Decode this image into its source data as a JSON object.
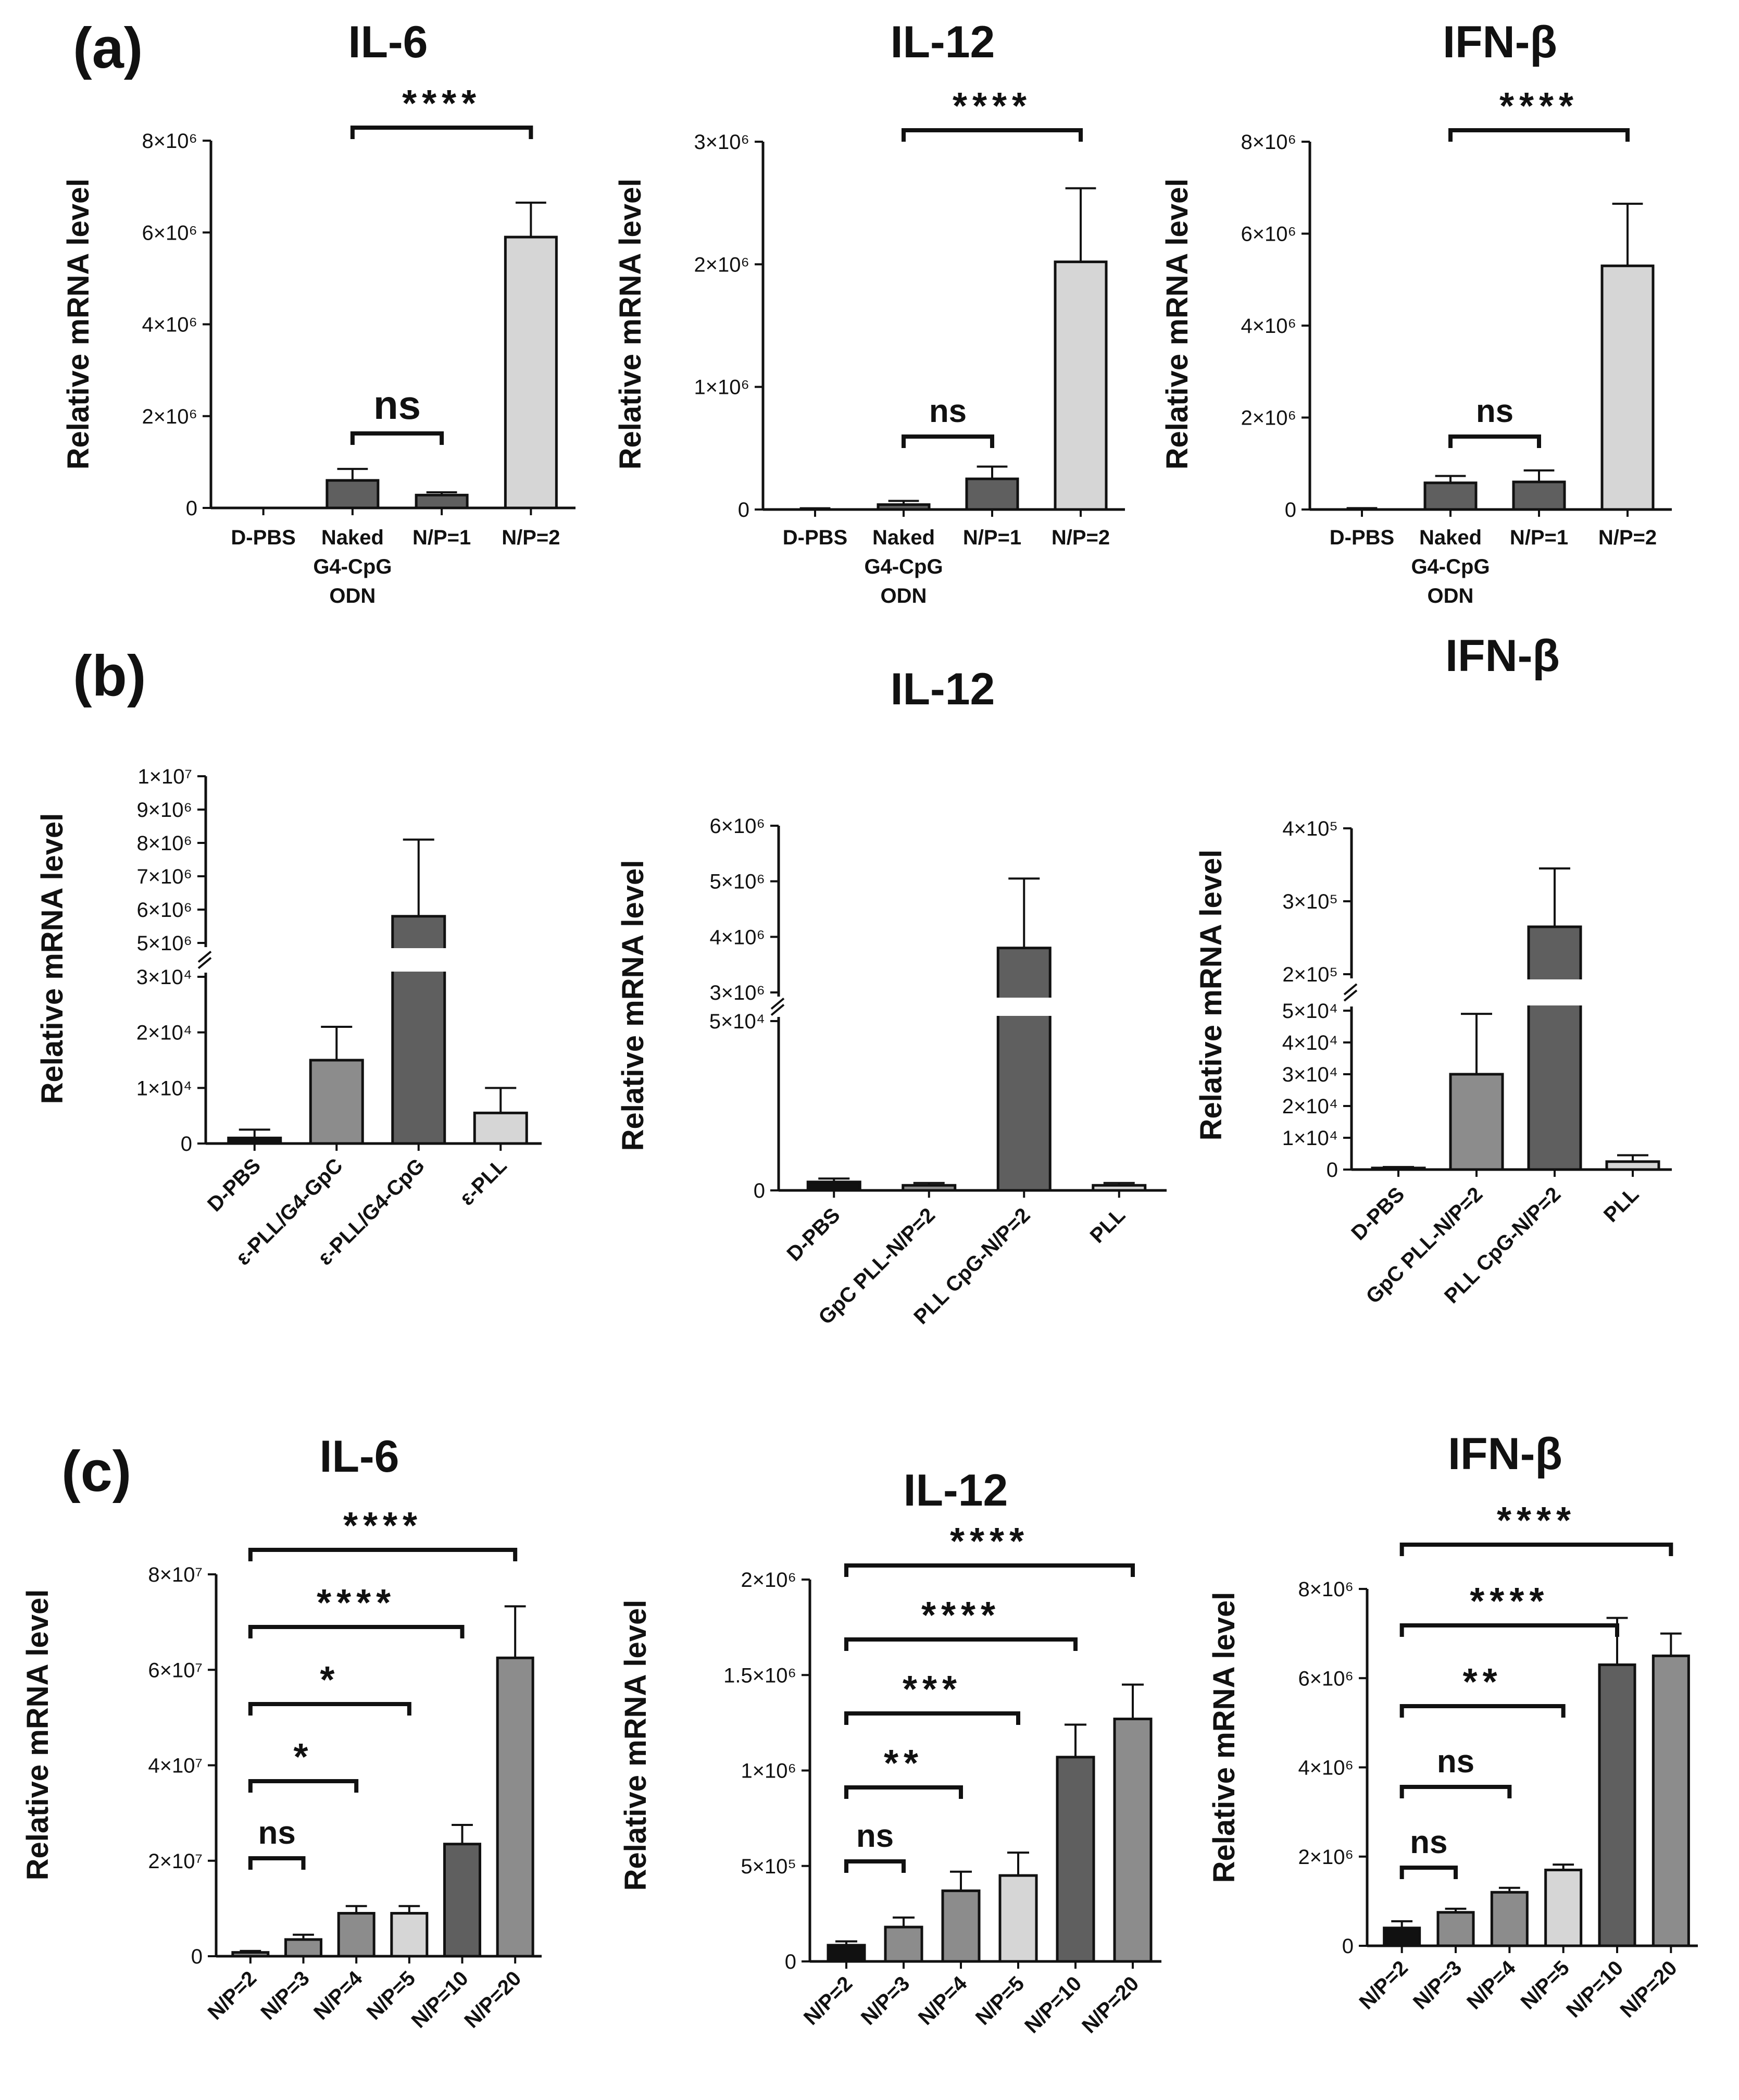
{
  "panels": [
    {
      "id": "a",
      "label": "(a)"
    },
    {
      "id": "b",
      "label": "(b)"
    },
    {
      "id": "c",
      "label": "(c)"
    }
  ],
  "colors": {
    "axis": "#111111",
    "black": "#111111",
    "dark": "#5f5f5f",
    "mid": "#8c8c8c",
    "light": "#d6d6d6",
    "white": "#ffffff"
  },
  "chart_data": [
    {
      "panel": "a",
      "type": "bar",
      "title": "IL-6",
      "ylabel": "Relative mRNA level",
      "categories": [
        "D-PBS",
        "Naked G4-CpG ODN",
        "N/P=1",
        "N/P=2"
      ],
      "category_lines": [
        [
          "D-PBS"
        ],
        [
          "Naked",
          "G4-CpG",
          "ODN"
        ],
        [
          "N/P=1"
        ],
        [
          "N/P=2"
        ]
      ],
      "values": [
        0,
        600000,
        280000,
        5900000
      ],
      "errors": [
        0,
        250000,
        60000,
        750000
      ],
      "bar_colors": [
        "white",
        "dark",
        "dark",
        "light"
      ],
      "ylim": [
        0,
        8000000
      ],
      "yticks": [
        0,
        2000000,
        4000000,
        6000000,
        8000000
      ],
      "ytick_labels": [
        "0",
        "2×10⁶",
        "4×10⁶",
        "6×10⁶",
        "8×10⁶"
      ],
      "significance": [
        {
          "from": 1,
          "to": 3,
          "label": "****"
        },
        {
          "from": 1,
          "to": 2,
          "label": "ns"
        }
      ]
    },
    {
      "panel": "a",
      "type": "bar",
      "title": "IL-12",
      "ylabel": "Relative mRNA level",
      "categories": [
        "D-PBS",
        "Naked G4-CpG ODN",
        "N/P=1",
        "N/P=2"
      ],
      "category_lines": [
        [
          "D-PBS"
        ],
        [
          "Naked",
          "G4-CpG",
          "ODN"
        ],
        [
          "N/P=1"
        ],
        [
          "N/P=2"
        ]
      ],
      "values": [
        0,
        40000,
        250000,
        2020000
      ],
      "errors": [
        10000,
        30000,
        100000,
        600000
      ],
      "bar_colors": [
        "white",
        "dark",
        "dark",
        "light"
      ],
      "ylim": [
        0,
        3000000
      ],
      "yticks": [
        0,
        1000000,
        2000000,
        3000000
      ],
      "ytick_labels": [
        "0",
        "1×10⁶",
        "2×10⁶",
        "3×10⁶"
      ],
      "significance": [
        {
          "from": 1,
          "to": 3,
          "label": "****"
        },
        {
          "from": 1,
          "to": 2,
          "label": "ns"
        }
      ]
    },
    {
      "panel": "a",
      "type": "bar",
      "title": "IFN-β",
      "ylabel": "Relative mRNA level",
      "categories": [
        "D-PBS",
        "Naked G4-CpG ODN",
        "N/P=1",
        "N/P=2"
      ],
      "category_lines": [
        [
          "D-PBS"
        ],
        [
          "Naked",
          "G4-CpG",
          "ODN"
        ],
        [
          "N/P=1"
        ],
        [
          "N/P=2"
        ]
      ],
      "values": [
        0,
        580000,
        600000,
        5300000
      ],
      "errors": [
        30000,
        150000,
        250000,
        1350000
      ],
      "bar_colors": [
        "white",
        "dark",
        "dark",
        "light"
      ],
      "ylim": [
        0,
        8000000
      ],
      "yticks": [
        0,
        2000000,
        4000000,
        6000000,
        8000000
      ],
      "ytick_labels": [
        "0",
        "2×10⁶",
        "4×10⁶",
        "6×10⁶",
        "8×10⁶"
      ],
      "significance": [
        {
          "from": 1,
          "to": 3,
          "label": "****"
        },
        {
          "from": 1,
          "to": 2,
          "label": "ns"
        }
      ]
    },
    {
      "panel": "b",
      "type": "bar",
      "title": "",
      "ylabel": "Relative mRNA level",
      "categories": [
        "D-PBS",
        "ε-PLL/G4-GpC",
        "ε-PLL/G4-CpG",
        "ε-PLL"
      ],
      "values": [
        1000,
        15000,
        5800000,
        5500
      ],
      "errors": [
        1500,
        6000,
        2300000,
        4500
      ],
      "bar_colors": [
        "black",
        "mid",
        "dark",
        "light"
      ],
      "broken_axis": {
        "low": [
          0,
          30000
        ],
        "high": [
          5000000,
          10000000
        ]
      },
      "yticks_low": [
        0,
        10000,
        20000,
        30000
      ],
      "ytick_labels_low": [
        "0",
        "1×10⁴",
        "2×10⁴",
        "3×10⁴"
      ],
      "yticks_high": [
        5000000,
        6000000,
        7000000,
        8000000,
        9000000,
        10000000
      ],
      "ytick_labels_high": [
        "5×10⁶",
        "6×10⁶",
        "7×10⁶",
        "8×10⁶",
        "9×10⁶",
        "1×10⁷"
      ],
      "significance": []
    },
    {
      "panel": "b",
      "type": "bar",
      "title": "IL-12",
      "ylabel": "Relative mRNA level",
      "categories": [
        "D-PBS",
        "GpC PLL-N/P=2",
        "PLL CpG-N/P=2",
        "PLL"
      ],
      "values": [
        2500,
        1500,
        3800000,
        1500
      ],
      "errors": [
        1000,
        700,
        1250000,
        700
      ],
      "bar_colors": [
        "black",
        "mid",
        "dark",
        "light"
      ],
      "broken_axis": {
        "low": [
          0,
          50000
        ],
        "high": [
          3000000,
          6000000
        ]
      },
      "yticks_low": [
        0,
        50000
      ],
      "ytick_labels_low": [
        "0",
        "5×10⁴"
      ],
      "yticks_high": [
        3000000,
        4000000,
        5000000,
        6000000
      ],
      "ytick_labels_high": [
        "3×10⁶",
        "4×10⁶",
        "5×10⁶",
        "6×10⁶"
      ],
      "significance": []
    },
    {
      "panel": "b",
      "type": "bar",
      "title": "IFN-β",
      "ylabel": "Relative mRNA level",
      "categories": [
        "D-PBS",
        "GpC PLL-N/P=2",
        "PLL CpG-N/P=2",
        "PLL"
      ],
      "values": [
        500,
        30000,
        265000,
        2500
      ],
      "errors": [
        300,
        19000,
        80000,
        2000
      ],
      "bar_colors": [
        "black",
        "mid",
        "dark",
        "light"
      ],
      "broken_axis": {
        "low": [
          0,
          50000
        ],
        "high": [
          200000,
          400000
        ]
      },
      "yticks_low": [
        0,
        10000,
        20000,
        30000,
        40000,
        50000
      ],
      "ytick_labels_low": [
        "0",
        "1×10⁴",
        "2×10⁴",
        "3×10⁴",
        "4×10⁴",
        "5×10⁴"
      ],
      "yticks_high": [
        200000,
        300000,
        400000
      ],
      "ytick_labels_high": [
        "2×10⁵",
        "3×10⁵",
        "4×10⁵"
      ],
      "significance": []
    },
    {
      "panel": "c",
      "type": "bar",
      "title": "IL-6",
      "ylabel": "Relative mRNA level",
      "categories": [
        "N/P=2",
        "N/P=3",
        "N/P=4",
        "N/P=5",
        "N/P=10",
        "N/P=20"
      ],
      "values": [
        800000,
        3500000,
        9000000,
        9000000,
        23500000,
        62500000
      ],
      "errors": [
        300000,
        1000000,
        1500000,
        1500000,
        4000000,
        10800000
      ],
      "bar_colors": [
        "mid",
        "mid",
        "mid",
        "light",
        "dark",
        "mid"
      ],
      "ylim": [
        0,
        80000000
      ],
      "yticks": [
        0,
        20000000,
        40000000,
        60000000,
        80000000
      ],
      "ytick_labels": [
        "0",
        "2×10⁷",
        "4×10⁷",
        "6×10⁷",
        "8×10⁷"
      ],
      "significance": [
        {
          "from": 0,
          "to": 1,
          "label": "ns"
        },
        {
          "from": 0,
          "to": 2,
          "label": "*"
        },
        {
          "from": 0,
          "to": 3,
          "label": "*"
        },
        {
          "from": 0,
          "to": 4,
          "label": "****"
        },
        {
          "from": 0,
          "to": 5,
          "label": "****"
        }
      ]
    },
    {
      "panel": "c",
      "type": "bar",
      "title": "IL-12",
      "ylabel": "Relative mRNA level",
      "categories": [
        "N/P=2",
        "N/P=3",
        "N/P=4",
        "N/P=5",
        "N/P=10",
        "N/P=20"
      ],
      "values": [
        85000,
        180000,
        370000,
        450000,
        1070000,
        1270000
      ],
      "errors": [
        20000,
        50000,
        100000,
        120000,
        170000,
        180000
      ],
      "bar_colors": [
        "black",
        "mid",
        "mid",
        "light",
        "dark",
        "mid"
      ],
      "ylim": [
        0,
        2000000
      ],
      "yticks": [
        0,
        500000,
        1000000,
        1500000,
        2000000
      ],
      "ytick_labels": [
        "0",
        "5×10⁵",
        "1×10⁶",
        "1.5×10⁶",
        "2×10⁶"
      ],
      "significance": [
        {
          "from": 0,
          "to": 1,
          "label": "ns"
        },
        {
          "from": 0,
          "to": 2,
          "label": "**"
        },
        {
          "from": 0,
          "to": 3,
          "label": "***"
        },
        {
          "from": 0,
          "to": 4,
          "label": "****"
        },
        {
          "from": 0,
          "to": 5,
          "label": "****"
        }
      ]
    },
    {
      "panel": "c",
      "type": "bar",
      "title": "IFN-β",
      "ylabel": "Relative mRNA level",
      "categories": [
        "N/P=2",
        "N/P=3",
        "N/P=4",
        "N/P=5",
        "N/P=10",
        "N/P=20"
      ],
      "values": [
        400000,
        750000,
        1200000,
        1700000,
        6300000,
        6500000
      ],
      "errors": [
        150000,
        80000,
        100000,
        120000,
        1050000,
        500000
      ],
      "bar_colors": [
        "black",
        "mid",
        "mid",
        "light",
        "dark",
        "mid"
      ],
      "ylim": [
        0,
        8000000
      ],
      "yticks": [
        0,
        2000000,
        4000000,
        6000000,
        8000000
      ],
      "ytick_labels": [
        "0",
        "2×10⁶",
        "4×10⁶",
        "6×10⁶",
        "8×10⁶"
      ],
      "significance": [
        {
          "from": 0,
          "to": 1,
          "label": "ns"
        },
        {
          "from": 0,
          "to": 2,
          "label": "ns"
        },
        {
          "from": 0,
          "to": 3,
          "label": "**"
        },
        {
          "from": 0,
          "to": 4,
          "label": "****"
        },
        {
          "from": 0,
          "to": 5,
          "label": "****"
        }
      ]
    }
  ]
}
